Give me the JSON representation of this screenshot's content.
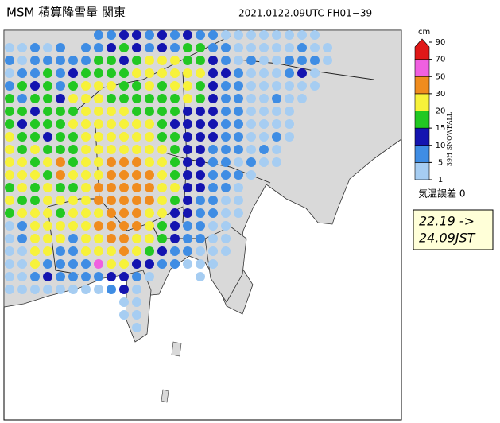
{
  "header": {
    "title": "MSM 積算降雪量 関東",
    "time": "2021.0122.09UTC  FH01−39"
  },
  "legend": {
    "unit": "cm",
    "label": "39H SNOWFALL",
    "levels": [
      1,
      5,
      10,
      15,
      20,
      30,
      50,
      70,
      90
    ],
    "colors": [
      "#a6cdf2",
      "#3f8de4",
      "#1414b0",
      "#22c822",
      "#f7f23a",
      "#f08c1e",
      "#f060e0",
      "#e01818"
    ]
  },
  "note": "気温誤差  0",
  "period": {
    "from": "22.19 ->",
    "to": "24.09JST"
  },
  "snowfall": {
    "grid": [
      [
        null,
        null,
        null,
        null,
        null,
        null,
        null,
        7,
        7,
        12,
        12,
        7,
        12,
        7,
        12,
        7,
        7,
        3,
        3,
        3,
        3,
        3,
        3,
        3,
        3,
        null
      ],
      [
        3,
        3,
        7,
        3,
        7,
        null,
        7,
        7,
        12,
        17,
        12,
        7,
        12,
        7,
        17,
        17,
        7,
        7,
        3,
        3,
        3,
        3,
        3,
        7,
        3,
        3
      ],
      [
        7,
        3,
        7,
        7,
        7,
        7,
        7,
        17,
        17,
        12,
        17,
        25,
        25,
        25,
        17,
        17,
        12,
        7,
        3,
        7,
        3,
        3,
        7,
        7,
        7,
        3
      ],
      [
        3,
        7,
        7,
        17,
        7,
        12,
        17,
        17,
        17,
        17,
        25,
        25,
        25,
        25,
        25,
        25,
        12,
        12,
        7,
        3,
        3,
        3,
        7,
        12,
        3,
        null
      ],
      [
        7,
        17,
        12,
        17,
        7,
        17,
        25,
        25,
        25,
        17,
        17,
        25,
        17,
        25,
        25,
        17,
        12,
        7,
        7,
        3,
        3,
        3,
        3,
        3,
        3,
        null
      ],
      [
        17,
        7,
        17,
        17,
        12,
        25,
        25,
        25,
        17,
        17,
        17,
        17,
        17,
        17,
        25,
        17,
        12,
        7,
        7,
        3,
        3,
        7,
        3,
        3,
        null,
        null
      ],
      [
        17,
        17,
        12,
        17,
        17,
        17,
        25,
        25,
        25,
        25,
        17,
        17,
        17,
        17,
        12,
        12,
        12,
        7,
        7,
        3,
        3,
        3,
        3,
        null,
        null,
        null
      ],
      [
        17,
        12,
        17,
        17,
        17,
        25,
        25,
        25,
        25,
        25,
        25,
        25,
        17,
        12,
        12,
        12,
        12,
        7,
        7,
        3,
        3,
        3,
        3,
        null,
        null,
        null
      ],
      [
        25,
        17,
        17,
        12,
        17,
        17,
        25,
        25,
        25,
        25,
        25,
        25,
        17,
        17,
        12,
        12,
        12,
        7,
        7,
        3,
        3,
        7,
        3,
        null,
        null,
        null
      ],
      [
        25,
        17,
        25,
        17,
        17,
        17,
        25,
        25,
        25,
        25,
        25,
        25,
        25,
        17,
        12,
        12,
        7,
        7,
        7,
        3,
        7,
        3,
        null,
        null,
        null,
        null
      ],
      [
        25,
        25,
        17,
        25,
        40,
        17,
        25,
        25,
        40,
        40,
        40,
        25,
        25,
        17,
        12,
        12,
        7,
        7,
        3,
        7,
        3,
        3,
        null,
        null,
        null,
        null
      ],
      [
        25,
        25,
        25,
        17,
        40,
        25,
        25,
        25,
        40,
        40,
        40,
        40,
        25,
        17,
        12,
        12,
        7,
        7,
        7,
        3,
        null,
        null,
        null,
        null,
        null,
        null
      ],
      [
        17,
        25,
        17,
        25,
        17,
        17,
        25,
        40,
        40,
        40,
        40,
        40,
        25,
        25,
        12,
        12,
        7,
        7,
        3,
        null,
        null,
        null,
        null,
        null,
        null,
        null
      ],
      [
        25,
        17,
        17,
        25,
        25,
        25,
        25,
        40,
        40,
        40,
        40,
        40,
        25,
        17,
        12,
        7,
        7,
        3,
        3,
        null,
        null,
        null,
        null,
        null,
        null,
        null
      ],
      [
        17,
        25,
        25,
        25,
        17,
        25,
        25,
        25,
        40,
        40,
        40,
        25,
        25,
        12,
        12,
        7,
        7,
        3,
        3,
        null,
        null,
        null,
        null,
        null,
        null,
        null
      ],
      [
        3,
        7,
        25,
        25,
        25,
        25,
        25,
        40,
        40,
        40,
        40,
        25,
        17,
        12,
        7,
        7,
        3,
        3,
        null,
        null,
        null,
        null,
        null,
        null,
        null,
        null
      ],
      [
        3,
        7,
        25,
        25,
        25,
        7,
        25,
        25,
        40,
        40,
        25,
        25,
        17,
        12,
        7,
        7,
        3,
        3,
        null,
        null,
        null,
        null,
        null,
        null,
        null,
        null
      ],
      [
        3,
        3,
        25,
        25,
        7,
        7,
        25,
        25,
        25,
        40,
        25,
        17,
        12,
        7,
        7,
        3,
        3,
        3,
        null,
        null,
        null,
        null,
        null,
        null,
        null,
        null
      ],
      [
        3,
        3,
        25,
        7,
        7,
        7,
        7,
        60,
        25,
        25,
        12,
        12,
        7,
        7,
        3,
        3,
        3,
        null,
        null,
        null,
        null,
        null,
        null,
        null,
        null,
        null
      ],
      [
        3,
        3,
        7,
        12,
        7,
        7,
        7,
        7,
        12,
        12,
        7,
        3,
        null,
        null,
        null,
        3,
        null,
        null,
        null,
        null,
        null,
        null,
        null,
        null,
        null,
        null
      ],
      [
        3,
        3,
        3,
        3,
        3,
        3,
        3,
        3,
        7,
        12,
        3,
        null,
        null,
        null,
        null,
        null,
        null,
        null,
        null,
        null,
        null,
        null,
        null,
        null,
        null,
        null
      ],
      [
        null,
        null,
        null,
        null,
        null,
        null,
        null,
        null,
        null,
        3,
        3,
        null,
        null,
        null,
        null,
        null,
        null,
        null,
        null,
        null,
        null,
        null,
        null,
        null,
        null,
        null
      ],
      [
        null,
        null,
        null,
        null,
        null,
        null,
        null,
        null,
        null,
        3,
        3,
        null,
        null,
        null,
        null,
        null,
        null,
        null,
        null,
        null,
        null,
        null,
        null,
        null,
        null,
        null
      ],
      [
        null,
        null,
        null,
        null,
        null,
        null,
        null,
        null,
        null,
        null,
        3,
        null,
        null,
        null,
        null,
        null,
        null,
        null,
        null,
        null,
        null,
        null,
        null,
        null,
        null,
        null
      ]
    ]
  }
}
